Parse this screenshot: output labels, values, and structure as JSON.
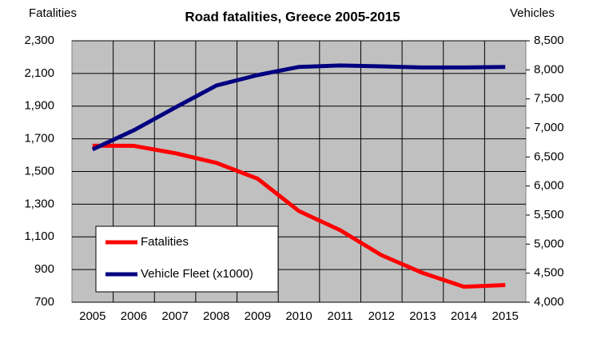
{
  "chart_data": {
    "type": "line",
    "title": "Road fatalities, Greece 2005-2015",
    "y_label": "Fatalities",
    "y2_label": "Vehicles",
    "categories": [
      "2005",
      "2006",
      "2007",
      "2008",
      "2009",
      "2010",
      "2011",
      "2012",
      "2013",
      "2014",
      "2015"
    ],
    "series": [
      {
        "name": "Fatalities",
        "color": "#ff0000",
        "values": [
          1658,
          1657,
          1612,
          1553,
          1456,
          1258,
          1141,
          988,
          879,
          795,
          805
        ]
      },
      {
        "name": "Vehicle Fleet (x1000)",
        "color": "#000080",
        "axis": "y2",
        "values": [
          6630,
          6960,
          7350,
          7730,
          7910,
          8050,
          8075,
          8060,
          8040,
          8040,
          8050
        ]
      }
    ],
    "ylim": [
      700,
      2300
    ],
    "yticks": [
      700,
      900,
      {
        "value": 1100,
        "label": "1,100"
      },
      {
        "value": 1300,
        "label": "1,300"
      },
      {
        "value": 1500,
        "label": "1,500"
      },
      {
        "value": 1700,
        "label": "1,700"
      },
      {
        "value": 1900,
        "label": "1,900"
      },
      {
        "value": 2100,
        "label": "2,100"
      },
      {
        "value": 2300,
        "label": "2,300"
      }
    ],
    "y2lim": [
      4000,
      8500
    ],
    "y2ticks": [
      {
        "value": 4000,
        "label": "4,000"
      },
      {
        "value": 4500,
        "label": "4,500"
      },
      {
        "value": 5000,
        "label": "5,000"
      },
      {
        "value": 5500,
        "label": "5,500"
      },
      {
        "value": 6000,
        "label": "6,000"
      },
      {
        "value": 6500,
        "label": "6,500"
      },
      {
        "value": 7000,
        "label": "7,000"
      },
      {
        "value": 7500,
        "label": "7,500"
      },
      {
        "value": 8000,
        "label": "8,000"
      },
      {
        "value": 8500,
        "label": "8,500"
      }
    ],
    "grid": true,
    "plot_background": "#c0c0c0",
    "legend": "lower-left"
  }
}
